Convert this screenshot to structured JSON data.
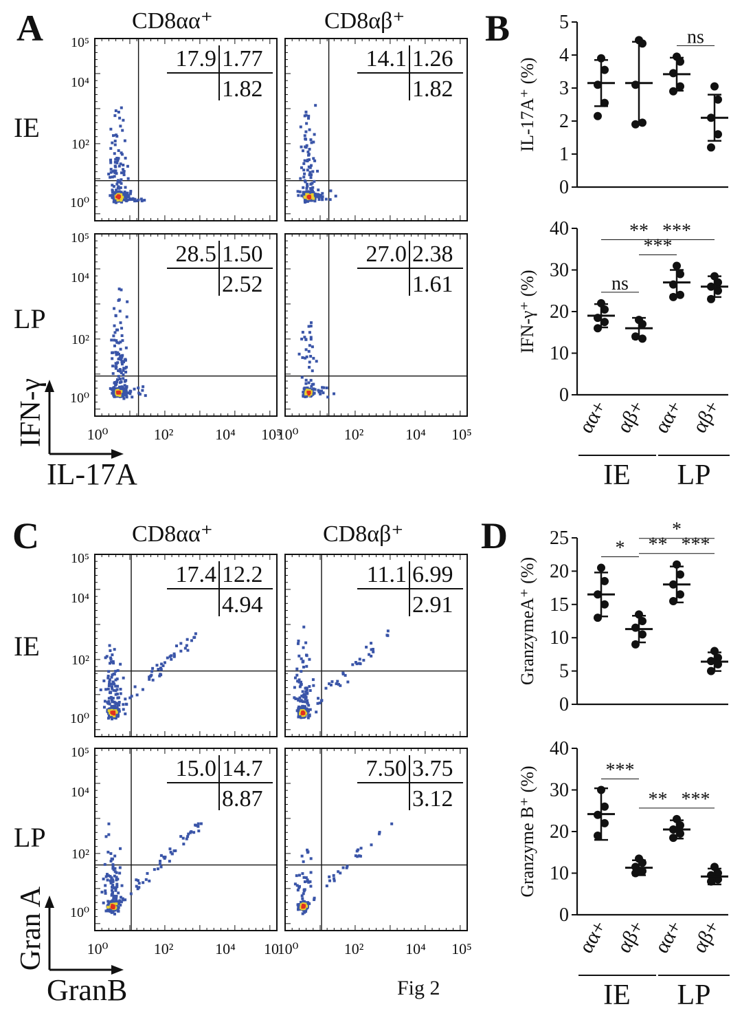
{
  "panels": {
    "A": "A",
    "B": "B",
    "C": "C",
    "D": "D"
  },
  "figure_caption": "Fig 2",
  "flow": {
    "columns": [
      "CD8αα⁺",
      "CD8αβ⁺"
    ],
    "rows_A": [
      "IE",
      "LP"
    ],
    "rows_C": [
      "IE",
      "LP"
    ],
    "axis_A": {
      "y": "IFN-γ",
      "x": "IL-17A"
    },
    "axis_C": {
      "y": "Gran A",
      "x": "GranB"
    },
    "x_ticks_A": [
      [
        "10⁰",
        "10²",
        "10⁴",
        "10⁵"
      ],
      [
        "10⁰",
        "10²",
        "10⁴",
        "10⁵"
      ]
    ],
    "x_ticks_C": [
      [
        "10⁰",
        "10²",
        "10⁴",
        "10"
      ],
      [
        "10⁰",
        "10²",
        "10⁴",
        "10⁵"
      ]
    ],
    "y_ticks": [
      "10⁵",
      "10⁴",
      "10²",
      "10⁰"
    ],
    "quadrants_A": [
      [
        {
          "ul": "17.9",
          "ur": "1.77",
          "lr": "1.82"
        },
        {
          "ul": "14.1",
          "ur": "1.26",
          "lr": "1.82"
        }
      ],
      [
        {
          "ul": "28.5",
          "ur": "1.50",
          "lr": "2.52"
        },
        {
          "ul": "27.0",
          "ur": "2.38",
          "lr": "1.61"
        }
      ]
    ],
    "quadrants_C": [
      [
        {
          "ul": "17.4",
          "ur": "12.2",
          "lr": "4.94"
        },
        {
          "ul": "11.1",
          "ur": "6.99",
          "lr": "2.91"
        }
      ],
      [
        {
          "ul": "15.0",
          "ur": "14.7",
          "lr": "8.87"
        },
        {
          "ul": "7.50",
          "ur": "3.75",
          "lr": "3.12"
        }
      ]
    ],
    "dot_colors": {
      "main": "#3a55a8",
      "mid": "#e8d030",
      "core": "#e03020"
    }
  },
  "chart_data": [
    {
      "panel": "B-top",
      "type": "scatter",
      "ylabel": "IL-17A⁺ (%)",
      "ylim": [
        0,
        5
      ],
      "yticks": [
        "0",
        "1",
        "2",
        "3",
        "4",
        "5"
      ],
      "categories": [
        "αα+",
        "αβ+",
        "αα+",
        "αβ+"
      ],
      "groups": [
        "IE",
        "LP"
      ],
      "mean": [
        3.15,
        3.15,
        3.42,
        2.1
      ],
      "sd": [
        0.7,
        1.25,
        0.5,
        0.7
      ],
      "points": [
        [
          3.9,
          3.55,
          3.1,
          2.55,
          2.15
        ],
        [
          4.45,
          4.35,
          3.1,
          1.95,
          1.9
        ],
        [
          3.95,
          3.8,
          3.45,
          3.05,
          2.9
        ],
        [
          3.05,
          2.65,
          2.1,
          1.6,
          1.2
        ]
      ],
      "significance": [
        {
          "from": 2,
          "to": 3,
          "label": "ns"
        }
      ]
    },
    {
      "panel": "B-bottom",
      "type": "scatter",
      "ylabel": "IFN-γ⁺ (%)",
      "ylim": [
        0,
        40
      ],
      "yticks": [
        "0",
        "10",
        "20",
        "30",
        "40"
      ],
      "categories": [
        "αα+",
        "αβ+",
        "αα+",
        "αβ+"
      ],
      "groups": [
        "IE",
        "LP"
      ],
      "mean": [
        19,
        16,
        27,
        26
      ],
      "sd": [
        2.8,
        2.5,
        3.0,
        2.5
      ],
      "points": [
        [
          22,
          20.5,
          18.5,
          17.5,
          16
        ],
        [
          18,
          17,
          14,
          13.5
        ],
        [
          31,
          29,
          26.5,
          24,
          23.5
        ],
        [
          28.5,
          27,
          26,
          25,
          23
        ]
      ],
      "significance": [
        {
          "from": 0,
          "to": 1,
          "label": "ns"
        },
        {
          "from": 1,
          "to": 2,
          "label": "***"
        },
        {
          "from": 1,
          "to": 3,
          "label": "***"
        },
        {
          "from": 0,
          "to": 2,
          "label": "**"
        }
      ]
    },
    {
      "panel": "D-top",
      "type": "scatter",
      "ylabel": "GranzymeA⁺ (%)",
      "ylim": [
        0,
        25
      ],
      "yticks": [
        "0",
        "5",
        "10",
        "15",
        "20",
        "25"
      ],
      "categories": [
        "αα+",
        "αβ+",
        "αα+",
        "αβ+"
      ],
      "groups": [
        "IE",
        "LP"
      ],
      "mean": [
        16.5,
        11.3,
        18,
        6.4
      ],
      "sd": [
        3.3,
        2.0,
        2.7,
        1.4
      ],
      "points": [
        [
          20.5,
          18.5,
          16.5,
          15,
          13
        ],
        [
          13.5,
          12.5,
          11.5,
          10.5,
          9
        ],
        [
          21,
          19.5,
          18,
          16.5,
          15.5
        ],
        [
          8,
          7,
          6.5,
          6,
          5
        ]
      ],
      "significance": [
        {
          "from": 0,
          "to": 1,
          "label": "*"
        },
        {
          "from": 1,
          "to": 2,
          "label": "**"
        },
        {
          "from": 2,
          "to": 3,
          "label": "***"
        },
        {
          "from": 1,
          "to": 3,
          "label": "*"
        }
      ]
    },
    {
      "panel": "D-bottom",
      "type": "scatter",
      "ylabel": "Granzyme B⁺ (%)",
      "ylim": [
        0,
        40
      ],
      "yticks": [
        "0",
        "10",
        "20",
        "30",
        "40"
      ],
      "categories": [
        "αα+",
        "αβ+",
        "αα+",
        "αβ+"
      ],
      "groups": [
        "IE",
        "LP"
      ],
      "mean": [
        24.2,
        11.3,
        20.5,
        9.2
      ],
      "sd": [
        6.2,
        1.8,
        2.2,
        1.9
      ],
      "points": [
        [
          30,
          26,
          24,
          22,
          19
        ],
        [
          13.5,
          12.5,
          11.5,
          10.5,
          10
        ],
        [
          23,
          21.5,
          20.5,
          19.5,
          18.5
        ],
        [
          11.5,
          10,
          9.5,
          8.5,
          8
        ]
      ],
      "significance": [
        {
          "from": 0,
          "to": 1,
          "label": "***"
        },
        {
          "from": 1,
          "to": 2,
          "label": "**"
        },
        {
          "from": 2,
          "to": 3,
          "label": "***"
        }
      ]
    }
  ]
}
